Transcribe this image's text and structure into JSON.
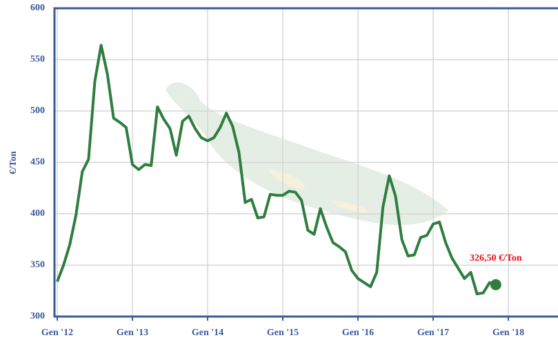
{
  "chart_data": {
    "type": "line",
    "y_label": "€/Ton",
    "annotation": "326,50 €/Ton",
    "categories": [
      "Gen '12",
      null,
      null,
      null,
      null,
      null,
      null,
      null,
      null,
      null,
      null,
      null,
      "Gen '13",
      null,
      null,
      null,
      null,
      null,
      null,
      null,
      null,
      null,
      null,
      null,
      "Gen '14",
      null,
      null,
      null,
      null,
      null,
      null,
      null,
      null,
      null,
      null,
      null,
      "Gen '15",
      null,
      null,
      null,
      null,
      null,
      null,
      null,
      null,
      null,
      null,
      null,
      "Gen '16",
      null,
      null,
      null,
      null,
      null,
      null,
      null,
      null,
      null,
      null,
      null,
      "Gen '17",
      null,
      null,
      null,
      null,
      null,
      null,
      null,
      null,
      null,
      null,
      null,
      "Gen '18"
    ],
    "values": [
      334,
      350,
      370,
      399,
      441,
      453,
      529,
      564,
      536,
      493,
      489,
      484,
      448,
      443,
      448,
      447,
      504,
      492,
      483,
      457,
      490,
      495,
      483,
      474,
      471,
      474,
      484,
      498,
      485,
      460,
      411,
      414,
      396,
      397,
      419,
      418,
      418,
      422,
      421,
      413,
      384,
      380,
      405,
      387,
      372,
      368,
      363,
      345,
      337,
      333,
      329,
      343,
      407,
      437,
      417,
      375,
      359,
      360,
      377,
      379,
      390,
      392,
      372,
      357,
      347,
      337,
      343,
      322,
      323,
      333,
      331,
      null,
      null
    ],
    "color": "#2f7d3f",
    "annotation_color": "#e8101a",
    "ylim": [
      300,
      600
    ],
    "yticks": [
      300,
      350,
      400,
      450,
      500,
      550,
      600
    ],
    "grid": true
  }
}
